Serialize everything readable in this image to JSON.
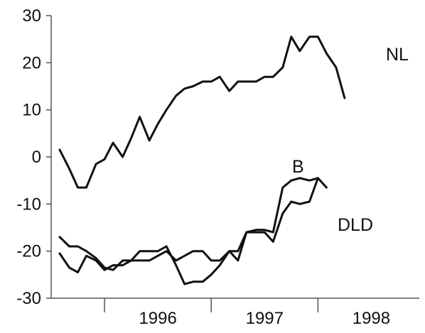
{
  "chart_data": {
    "type": "line",
    "title": "",
    "xlabel": "",
    "ylabel": "",
    "ylim": [
      -30,
      30
    ],
    "yticks": [
      30,
      20,
      10,
      0,
      -10,
      -20,
      -30
    ],
    "xticks": [
      "1996",
      "1997",
      "1998"
    ],
    "x_range": [
      1995.5,
      1998.95
    ],
    "grid": false,
    "legend": "inline labels",
    "series": [
      {
        "name": "NL",
        "x": [
          1995.58,
          1995.67,
          1995.75,
          1995.83,
          1995.92,
          1996.0,
          1996.08,
          1996.17,
          1996.25,
          1996.33,
          1996.42,
          1996.5,
          1996.58,
          1996.67,
          1996.75,
          1996.83,
          1996.92,
          1997.0,
          1997.08,
          1997.17,
          1997.25,
          1997.33,
          1997.42,
          1997.5,
          1997.58,
          1997.67,
          1997.75,
          1997.83,
          1997.92,
          1998.0,
          1998.08,
          1998.17,
          1998.25
        ],
        "y": [
          1.5,
          -2.5,
          -6.5,
          -6.5,
          -1.5,
          -0.5,
          3,
          0,
          4,
          8.5,
          3.5,
          7,
          10,
          13,
          14.5,
          15,
          16,
          16,
          17,
          14,
          16,
          16,
          16,
          17,
          17,
          19,
          25.5,
          22.5,
          25.5,
          25.5,
          22,
          19,
          12.5
        ]
      },
      {
        "name": "B",
        "x": [
          1995.58,
          1995.67,
          1995.75,
          1995.83,
          1995.92,
          1996.0,
          1996.08,
          1996.17,
          1996.25,
          1996.33,
          1996.42,
          1996.5,
          1996.58,
          1996.67,
          1996.75,
          1996.83,
          1996.92,
          1997.0,
          1997.08,
          1997.17,
          1997.25,
          1997.33,
          1997.42,
          1997.5,
          1997.58,
          1997.67,
          1997.75,
          1997.83,
          1997.92,
          1998.0,
          1998.08
        ],
        "y": [
          -17,
          -19,
          -19,
          -20,
          -21.5,
          -23.5,
          -24,
          -22,
          -22,
          -22,
          -22,
          -21,
          -20,
          -22,
          -21,
          -20,
          -20,
          -22,
          -22,
          -20,
          -20,
          -16,
          -15.5,
          -15.5,
          -16,
          -6.5,
          -5,
          -4.5,
          -5,
          -4.5,
          -6.5
        ]
      },
      {
        "name": "DLD",
        "x": [
          1995.58,
          1995.67,
          1995.75,
          1995.83,
          1995.92,
          1996.0,
          1996.08,
          1996.17,
          1996.25,
          1996.33,
          1996.42,
          1996.5,
          1996.58,
          1996.67,
          1996.75,
          1996.83,
          1996.92,
          1997.0,
          1997.08,
          1997.17,
          1997.25,
          1997.33,
          1997.42,
          1997.5,
          1997.58,
          1997.67,
          1997.75,
          1997.83,
          1997.92,
          1998.0
        ],
        "y": [
          -20.5,
          -23.5,
          -24.5,
          -21,
          -22,
          -24,
          -23,
          -23,
          -22,
          -20,
          -20,
          -20,
          -19,
          -23,
          -27,
          -26.5,
          -26.5,
          -25,
          -23,
          -20,
          -22,
          -16,
          -16,
          -16,
          -18,
          -12,
          -9.5,
          -10,
          -9.5,
          -4.5
        ]
      }
    ]
  }
}
